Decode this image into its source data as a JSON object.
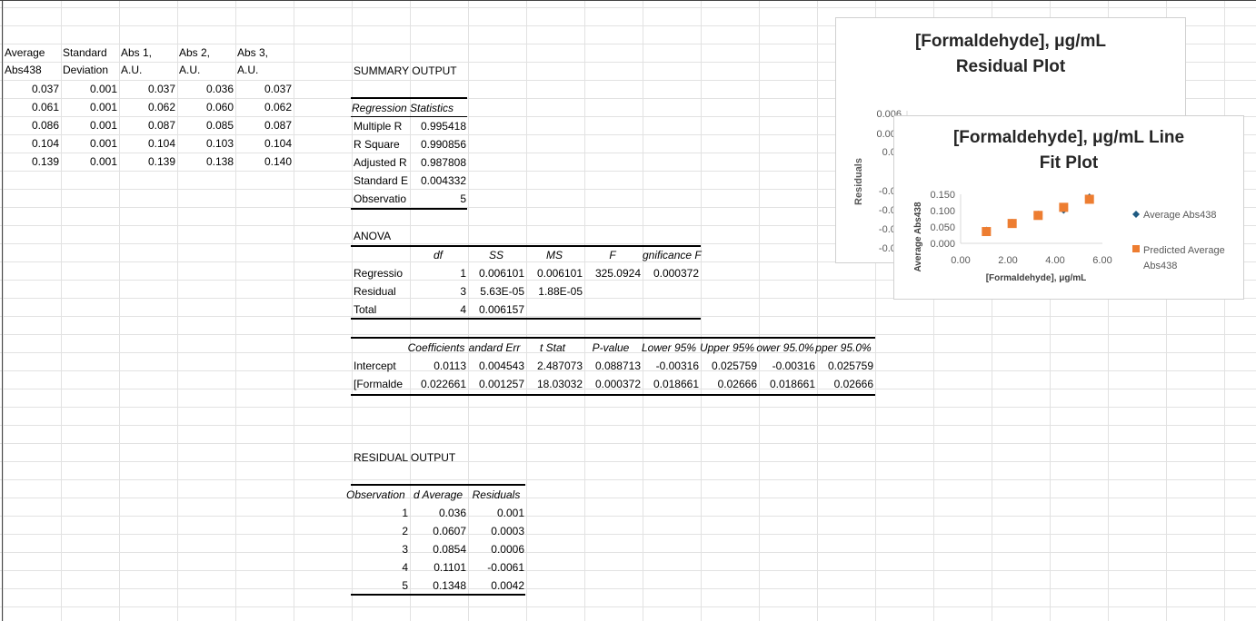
{
  "top_table": {
    "headers": [
      [
        "Average",
        "Abs438"
      ],
      [
        "Standard",
        "Deviation"
      ],
      [
        "Abs 1,",
        "A.U."
      ],
      [
        "Abs 2,",
        "A.U."
      ],
      [
        "Abs 3,",
        "A.U."
      ]
    ],
    "rows": [
      [
        "0.037",
        "0.001",
        "0.037",
        "0.036",
        "0.037"
      ],
      [
        "0.061",
        "0.001",
        "0.062",
        "0.060",
        "0.062"
      ],
      [
        "0.086",
        "0.001",
        "0.087",
        "0.085",
        "0.087"
      ],
      [
        "0.104",
        "0.001",
        "0.104",
        "0.103",
        "0.104"
      ],
      [
        "0.139",
        "0.001",
        "0.139",
        "0.138",
        "0.140"
      ]
    ]
  },
  "summary": {
    "title": "SUMMARY OUTPUT",
    "regstats_header": "Regression Statistics",
    "regstats": [
      [
        "Multiple R",
        "0.995418"
      ],
      [
        "R Square",
        "0.990856"
      ],
      [
        "Adjusted R",
        "0.987808"
      ],
      [
        "Standard E",
        "0.004332"
      ],
      [
        "Observatio",
        "5"
      ]
    ],
    "anova_title": "ANOVA",
    "anova_headers": [
      "df",
      "SS",
      "MS",
      "F",
      "gnificance F"
    ],
    "anova_rows": [
      [
        "Regressio",
        "1",
        "0.006101",
        "0.006101",
        "325.0924",
        "0.000372"
      ],
      [
        "Residual",
        "3",
        "5.63E-05",
        "1.88E-05",
        "",
        ""
      ],
      [
        "Total",
        "4",
        "0.006157",
        "",
        "",
        ""
      ]
    ],
    "coef_headers": [
      "Coefficients",
      "andard Err",
      "t Stat",
      "P-value",
      "Lower 95%",
      "Upper 95%",
      "ower 95.0%",
      "pper 95.0%"
    ],
    "coef_rows": [
      [
        "Intercept",
        "0.0113",
        "0.004543",
        "2.487073",
        "0.088713",
        "-0.00316",
        "0.025759",
        "-0.00316",
        "0.025759"
      ],
      [
        "[Formalde",
        "0.022661",
        "0.001257",
        "18.03032",
        "0.000372",
        "0.018661",
        "0.02666",
        "0.018661",
        "0.02666"
      ]
    ]
  },
  "residual_output": {
    "title": "RESIDUAL OUTPUT",
    "headers": [
      "Observation",
      "d Average",
      "Residuals"
    ],
    "rows": [
      [
        "1",
        "0.036",
        "0.001"
      ],
      [
        "2",
        "0.0607",
        "0.0003"
      ],
      [
        "3",
        "0.0854",
        "0.0006"
      ],
      [
        "4",
        "0.1101",
        "-0.0061"
      ],
      [
        "5",
        "0.1348",
        "0.0042"
      ]
    ]
  },
  "residual_chart": {
    "title_line1": "[Formaldehyde], μg/mL",
    "title_line2": "Residual Plot",
    "ylabel": "Residuals",
    "yticks": [
      "0.006",
      "0.004",
      "0.00",
      "-0.00",
      "-0.00",
      "-0.00",
      "-0.00"
    ]
  },
  "fit_chart": {
    "title_line1": "[Formaldehyde], μg/mL Line",
    "title_line2": "Fit  Plot",
    "xlabel": "[Formaldehyde], μg/mL",
    "ylabel": "Average Abs438",
    "legend_1": "Average Abs438",
    "legend_2a": "Predicted Average",
    "legend_2b": "Abs438"
  },
  "chart_data": [
    {
      "type": "scatter",
      "title": "[Formaldehyde], μg/mL Residual Plot",
      "ylabel": "Residuals",
      "ylim": [
        -0.008,
        0.006
      ],
      "series": [
        {
          "values": [
            0.001,
            0.0003,
            0.0006,
            -0.0061,
            0.0042
          ],
          "x": [
            1.09,
            2.18,
            3.28,
            4.36,
            5.45
          ]
        }
      ],
      "colors": [
        "#1f5b82"
      ]
    },
    {
      "type": "scatter",
      "title": "[Formaldehyde], μg/mL Line Fit  Plot",
      "xlabel": "[Formaldehyde], μg/mL",
      "ylabel": "Average Abs438",
      "xlim": [
        0,
        6
      ],
      "ylim": [
        0,
        0.15
      ],
      "xticks": [
        "0.00",
        "2.00",
        "4.00",
        "6.00"
      ],
      "yticks": [
        "0.000",
        "0.050",
        "0.100",
        "0.150"
      ],
      "series": [
        {
          "name": "Average Abs438",
          "x": [
            1.09,
            2.18,
            3.28,
            4.36,
            5.45
          ],
          "values": [
            0.037,
            0.061,
            0.086,
            0.104,
            0.139
          ]
        },
        {
          "name": "Predicted Average Abs438",
          "x": [
            1.09,
            2.18,
            3.28,
            4.36,
            5.45
          ],
          "values": [
            0.036,
            0.0607,
            0.0854,
            0.1101,
            0.1348
          ]
        }
      ],
      "colors": [
        "#1f5b82",
        "#ed7d31"
      ],
      "legend": "right"
    }
  ]
}
